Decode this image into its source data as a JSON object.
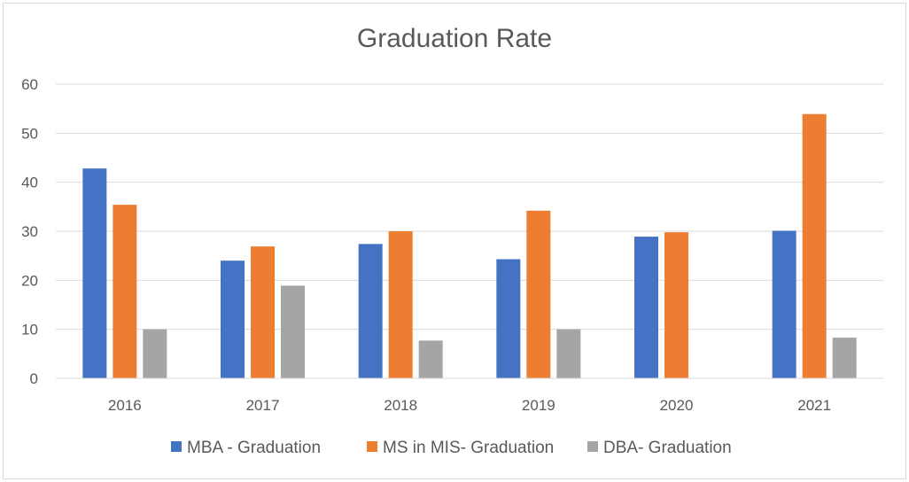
{
  "chart_data": {
    "type": "bar",
    "title": "Graduation Rate",
    "xlabel": "",
    "ylabel": "",
    "categories": [
      "2016",
      "2017",
      "2018",
      "2019",
      "2020",
      "2021"
    ],
    "ylim": [
      0,
      60
    ],
    "yticks": [
      0,
      10,
      20,
      30,
      40,
      50,
      60
    ],
    "grid": true,
    "legend_position": "bottom",
    "series": [
      {
        "name": "MBA - Graduation",
        "color": "#4472C4",
        "values": [
          42.8,
          24.0,
          27.4,
          24.3,
          28.9,
          30.1
        ]
      },
      {
        "name": "MS in MIS- Graduation",
        "color": "#ED7D31",
        "values": [
          35.4,
          26.9,
          30.0,
          34.2,
          29.8,
          53.9
        ]
      },
      {
        "name": "DBA- Graduation",
        "color": "#A5A5A5",
        "values": [
          10.0,
          18.9,
          7.7,
          10.0,
          0,
          8.3
        ]
      }
    ]
  }
}
